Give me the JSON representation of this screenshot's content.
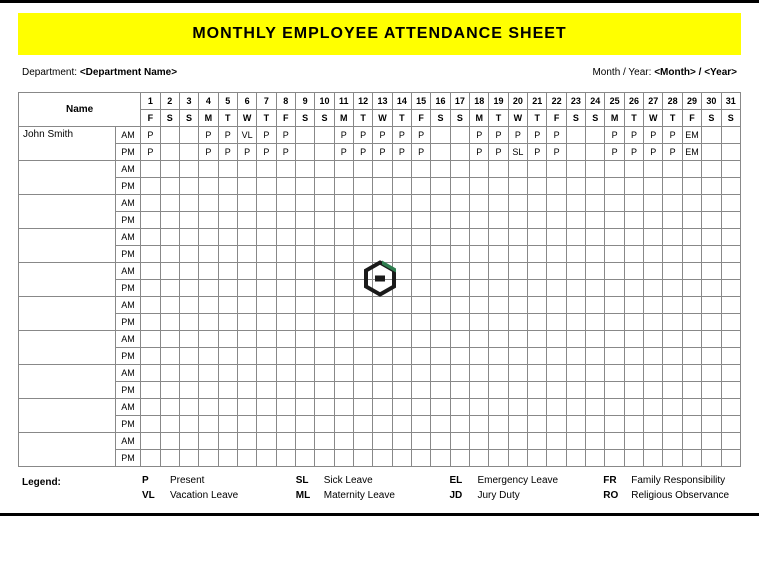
{
  "title": "MONTHLY EMPLOYEE ATTENDANCE SHEET",
  "meta": {
    "dept_label": "Department:",
    "dept_value": "<Department Name>",
    "monthyear_label": "Month / Year:",
    "monthyear_value": "<Month> / <Year>"
  },
  "headers": {
    "name": "Name",
    "ampm": [
      "AM",
      "PM"
    ]
  },
  "days": {
    "numbers": [
      "1",
      "2",
      "3",
      "4",
      "5",
      "6",
      "7",
      "8",
      "9",
      "10",
      "11",
      "12",
      "13",
      "14",
      "15",
      "16",
      "17",
      "18",
      "19",
      "20",
      "21",
      "22",
      "23",
      "24",
      "25",
      "26",
      "27",
      "28",
      "29",
      "30",
      "31"
    ],
    "weekdays": [
      "F",
      "S",
      "S",
      "M",
      "T",
      "W",
      "T",
      "F",
      "S",
      "S",
      "M",
      "T",
      "W",
      "T",
      "F",
      "S",
      "S",
      "M",
      "T",
      "W",
      "T",
      "F",
      "S",
      "S",
      "M",
      "T",
      "W",
      "T",
      "F",
      "S",
      "S"
    ]
  },
  "employees": [
    {
      "name": "John Smith",
      "am": [
        "P",
        "",
        "",
        "P",
        "P",
        "VL",
        "P",
        "P",
        "",
        "",
        "P",
        "P",
        "P",
        "P",
        "P",
        "",
        "",
        "P",
        "P",
        "P",
        "P",
        "P",
        "",
        "",
        "P",
        "P",
        "P",
        "P",
        "EM",
        "",
        ""
      ],
      "pm": [
        "P",
        "",
        "",
        "P",
        "P",
        "P",
        "P",
        "P",
        "",
        "",
        "P",
        "P",
        "P",
        "P",
        "P",
        "",
        "",
        "P",
        "P",
        "SL",
        "P",
        "P",
        "",
        "",
        "P",
        "P",
        "P",
        "P",
        "EM",
        "",
        ""
      ]
    },
    {
      "name": "",
      "am": [],
      "pm": []
    },
    {
      "name": "",
      "am": [],
      "pm": []
    },
    {
      "name": "",
      "am": [],
      "pm": []
    },
    {
      "name": "",
      "am": [],
      "pm": []
    },
    {
      "name": "",
      "am": [],
      "pm": []
    },
    {
      "name": "",
      "am": [],
      "pm": []
    },
    {
      "name": "",
      "am": [],
      "pm": []
    },
    {
      "name": "",
      "am": [],
      "pm": []
    },
    {
      "name": "",
      "am": [],
      "pm": []
    }
  ],
  "legend": {
    "label": "Legend:",
    "items": [
      {
        "code": "P",
        "text": "Present"
      },
      {
        "code": "SL",
        "text": "Sick Leave"
      },
      {
        "code": "EL",
        "text": "Emergency Leave"
      },
      {
        "code": "FR",
        "text": "Family Responsibility"
      },
      {
        "code": "VL",
        "text": "Vacation Leave"
      },
      {
        "code": "ML",
        "text": "Maternity Leave"
      },
      {
        "code": "JD",
        "text": "Jury Duty"
      },
      {
        "code": "RO",
        "text": "Religious Observance"
      }
    ]
  },
  "colors": {
    "banner_bg": "#ffff00",
    "border": "#888888",
    "watermark_dark": "#1a1a1a",
    "watermark_green": "#2e7d4f"
  }
}
